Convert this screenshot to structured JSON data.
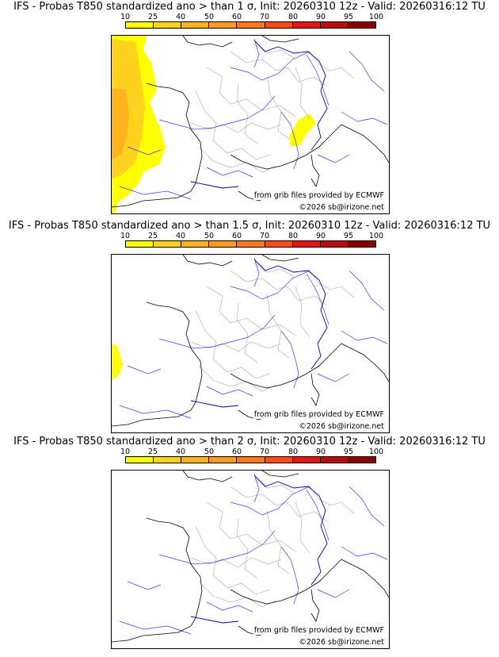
{
  "legend": {
    "ticks": [
      "10",
      "25",
      "40",
      "50",
      "60",
      "70",
      "80",
      "90",
      "95",
      "100"
    ],
    "colors": [
      "#ffff00",
      "#ffd21e",
      "#ffb41e",
      "#ff9a1e",
      "#ff781e",
      "#ff4a1e",
      "#e61414",
      "#be0a0a",
      "#8c0000",
      "#640000"
    ]
  },
  "panels": [
    {
      "title": "IFS - Probas T850  standardized ano > than 1 σ, Init: 20260310 12z - Valid: 20260316:12 TU",
      "source_note": "from grib files provided by ECMWF",
      "copyright": "©2026 sb@irizone.net",
      "probability_regions": [
        {
          "region": "Atlantic west of Brittany and Bay of Biscay",
          "probability_percent": 25
        },
        {
          "region": "Atlantic far west core",
          "probability_percent": 40
        },
        {
          "region": "Provence / Côte d'Azur",
          "probability_percent": 10
        }
      ]
    },
    {
      "title": "IFS - Probas T850  standardized ano > than 1.5 σ, Init: 20260310 12z - Valid: 20260316:12 TU",
      "source_note": "from grib files provided by ECMWF",
      "copyright": "©2026 sb@irizone.net",
      "probability_regions": [
        {
          "region": "Atlantic off Bay of Biscay",
          "probability_percent": 10
        }
      ]
    },
    {
      "title": "IFS - Probas T850  standardized ano > than 2 σ, Init: 20260310 12z - Valid: 20260316:12 TU",
      "source_note": "from grib files provided by ECMWF",
      "copyright": "©2026 sb@irizone.net",
      "probability_regions": []
    }
  ]
}
